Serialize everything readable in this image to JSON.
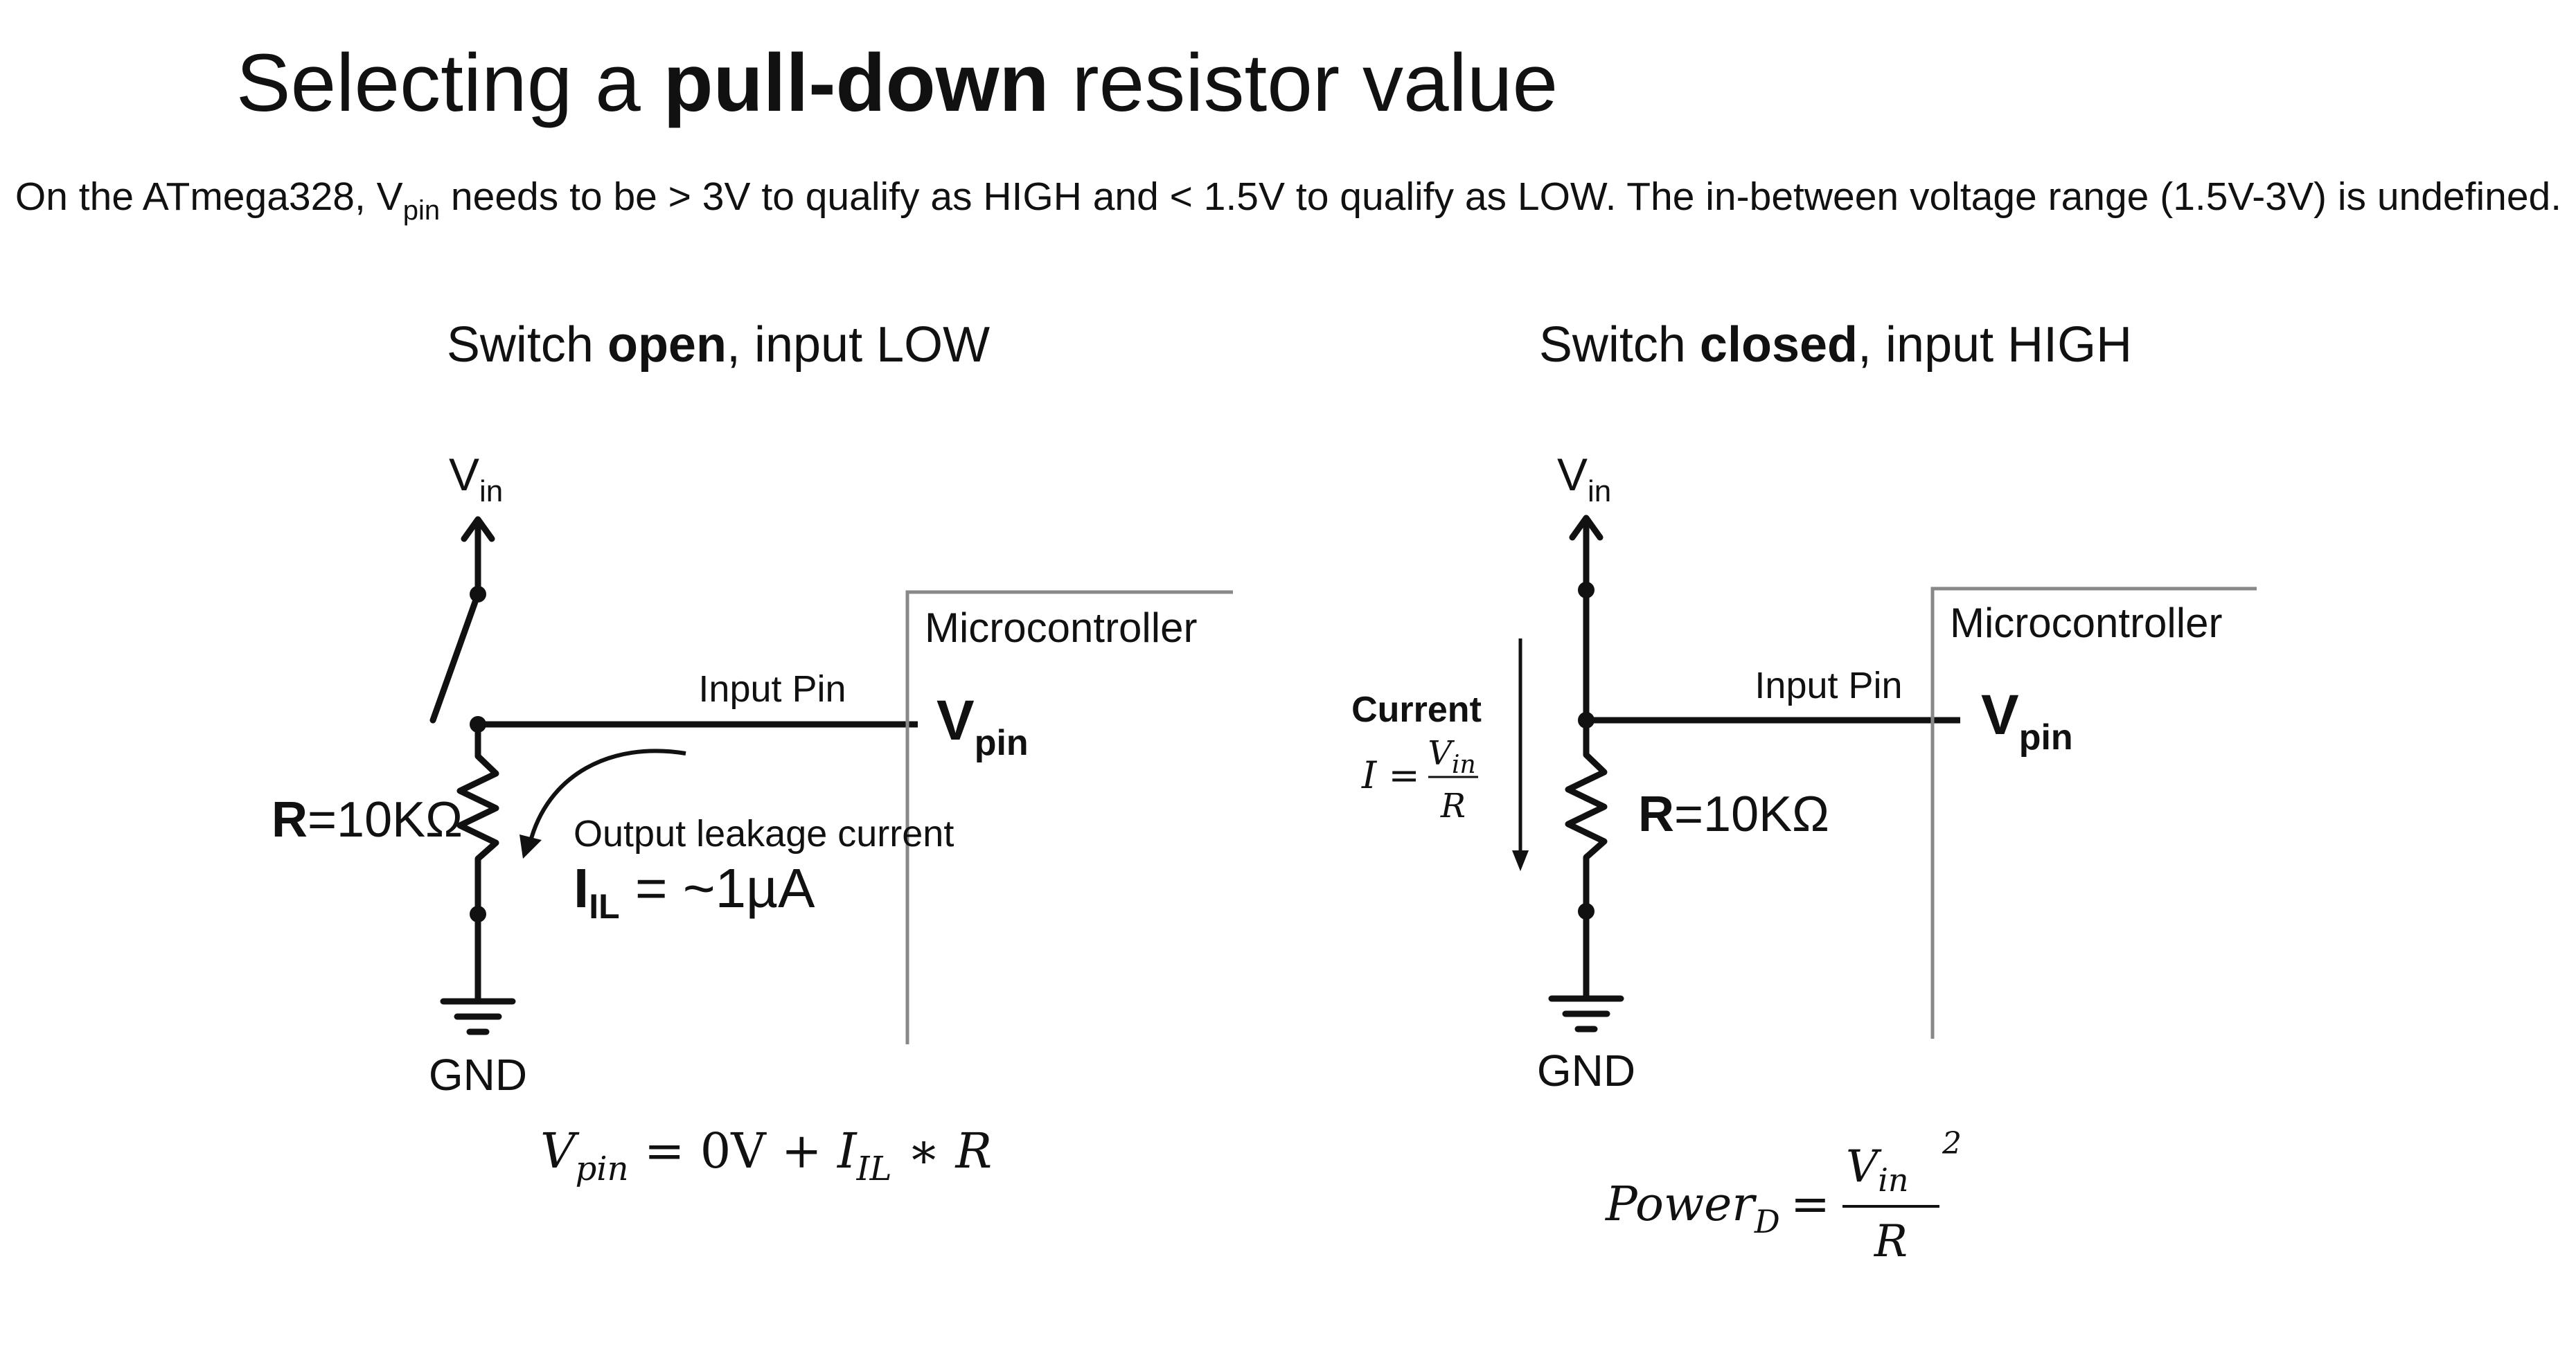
{
  "title": {
    "pre": "Selecting a ",
    "bold": "pull-down",
    "post": " resistor value"
  },
  "subtitle": {
    "pre": "On the ATmega328, V",
    "sub": "pin",
    "post": " needs to be > 3V to qualify as HIGH and < 1.5V to qualify as LOW. The in-between voltage range (1.5V-3V) is undefined."
  },
  "left_panel": {
    "heading": {
      "pre": "Switch ",
      "bold": "open",
      "post": ", input LOW"
    },
    "vin": {
      "main": "V",
      "sub": "in"
    },
    "gnd": "GND",
    "resistor": {
      "bold": "R",
      "value": "=10KΩ"
    },
    "input_pin": "Input Pin",
    "mcu": "Microcontroller",
    "vpin": {
      "main": "V",
      "sub": "pin"
    },
    "leakage": {
      "label": "Output leakage current",
      "sym": "I",
      "sub": "IL",
      "value": " = ~1µA"
    },
    "equation": {
      "v": "V",
      "vsub": "pin",
      "mid": " = 0V +  ",
      "i": "I",
      "isub": "IL",
      "tail": " ∗ R"
    }
  },
  "right_panel": {
    "heading": {
      "pre": "Switch ",
      "bold": "closed",
      "post": ", input HIGH"
    },
    "vin": {
      "main": "V",
      "sub": "in"
    },
    "gnd": "GND",
    "resistor": {
      "bold": "R",
      "value": "=10KΩ"
    },
    "input_pin": "Input Pin",
    "mcu": "Microcontroller",
    "vpin": {
      "main": "V",
      "sub": "pin"
    },
    "current": {
      "label": "Current",
      "lhs": "I =",
      "num": "V",
      "numsub": "in",
      "den": "R"
    },
    "power": {
      "lhs": "Power",
      "lhssub": "D",
      "eq": "=",
      "num": "V",
      "numsub": "in",
      "exp": "2",
      "den": "R"
    }
  }
}
